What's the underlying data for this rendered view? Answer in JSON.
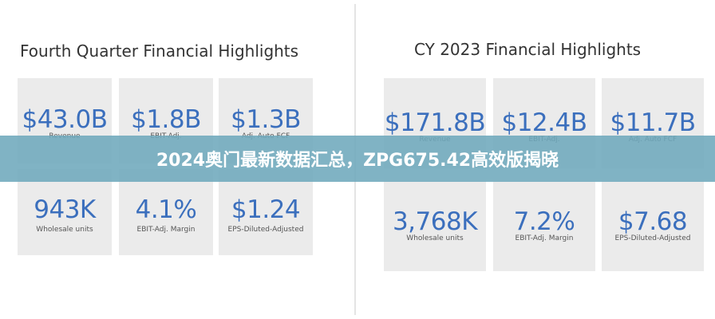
{
  "left": {
    "title": "Fourth Quarter Financial Highlights",
    "cards": [
      {
        "value": "$43.0B",
        "label": "Revenue"
      },
      {
        "value": "$1.8B",
        "label": "EBIT-Adj."
      },
      {
        "value": "$1.3B",
        "label": "Adj. Auto FCF"
      },
      {
        "value": "943K",
        "label": "Wholesale units"
      },
      {
        "value": "4.1%",
        "label": "EBIT-Adj. Margin"
      },
      {
        "value": "$1.24",
        "label": "EPS-Diluted-Adjusted"
      }
    ]
  },
  "right": {
    "title": "CY 2023 Financial Highlights",
    "cards": [
      {
        "value": "$171.8B",
        "label": "Revenue"
      },
      {
        "value": "$12.4B",
        "label": "EBIT-Adj."
      },
      {
        "value": "$11.7B",
        "label": "Adj. Auto FCF"
      },
      {
        "value": "3,768K",
        "label": "Wholesale units"
      },
      {
        "value": "7.2%",
        "label": "EBIT-Adj. Margin"
      },
      {
        "value": "$7.68",
        "label": "EPS-Diluted-Adjusted"
      }
    ]
  },
  "banner": {
    "text": "2024奥门最新数据汇总，ZPG675.42高效版揭晓"
  }
}
